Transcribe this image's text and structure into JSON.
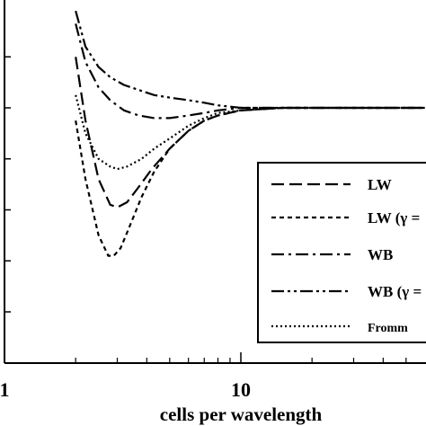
{
  "chart_data": {
    "type": "line",
    "title": "",
    "xlabel": "cells per wavelength",
    "ylabel": "",
    "xscale": "log",
    "xlim": [
      1,
      60
    ],
    "ylim": [
      0,
      1.4
    ],
    "x_ticks": [
      {
        "value": 1,
        "label": "1"
      },
      {
        "value": 10,
        "label": "10"
      }
    ],
    "y_ticks": [
      0.2,
      0.4,
      0.6,
      0.8,
      1.0,
      1.2
    ],
    "grid": false,
    "legend": "right",
    "series": [
      {
        "name": "LW",
        "dash": "long-dash",
        "x": [
          2.0,
          2.2,
          2.5,
          2.8,
          3.0,
          3.3,
          3.7,
          4.2,
          5,
          6,
          7,
          8,
          10,
          15,
          20,
          30,
          60
        ],
        "y": [
          1.2,
          0.95,
          0.72,
          0.62,
          0.61,
          0.63,
          0.69,
          0.76,
          0.84,
          0.91,
          0.95,
          0.97,
          0.99,
          1.0,
          1.0,
          1.0,
          1.0
        ]
      },
      {
        "name": "LW (γ =",
        "dash": "short-dash",
        "x": [
          2.0,
          2.2,
          2.5,
          2.75,
          2.9,
          3.1,
          3.4,
          3.8,
          4.3,
          5,
          6,
          7,
          8,
          10,
          15,
          20,
          30,
          60
        ],
        "y": [
          0.95,
          0.72,
          0.5,
          0.42,
          0.42,
          0.45,
          0.54,
          0.65,
          0.75,
          0.84,
          0.91,
          0.95,
          0.97,
          0.99,
          1.0,
          1.0,
          1.0,
          1.0
        ]
      },
      {
        "name": "WB",
        "dash": "dash-dot",
        "x": [
          2.0,
          2.2,
          2.5,
          2.8,
          3.2,
          3.7,
          4.3,
          5,
          6,
          7,
          8,
          10,
          15,
          20,
          30,
          60
        ],
        "y": [
          1.33,
          1.18,
          1.08,
          1.03,
          0.99,
          0.97,
          0.96,
          0.96,
          0.97,
          0.98,
          0.99,
          1.0,
          1.0,
          1.0,
          1.0,
          1.0
        ]
      },
      {
        "name": "WB (γ =",
        "dash": "dash-dot-dot",
        "x": [
          2.0,
          2.2,
          2.5,
          2.8,
          3.2,
          3.7,
          4.3,
          5,
          6,
          7,
          8,
          10,
          12,
          15,
          20,
          30,
          60
        ],
        "y": [
          1.38,
          1.24,
          1.16,
          1.12,
          1.09,
          1.07,
          1.05,
          1.04,
          1.03,
          1.02,
          1.01,
          1.0,
          1.0,
          1.0,
          1.0,
          1.0,
          1.0
        ]
      },
      {
        "name": "Fromm",
        "dash": "dotted",
        "x": [
          2.0,
          2.2,
          2.5,
          2.8,
          3.0,
          3.3,
          3.8,
          4.3,
          5,
          6,
          7,
          8,
          10,
          15,
          20,
          30,
          60
        ],
        "y": [
          1.05,
          0.9,
          0.8,
          0.77,
          0.76,
          0.77,
          0.8,
          0.84,
          0.88,
          0.93,
          0.96,
          0.98,
          0.99,
          1.0,
          1.0,
          1.0,
          1.0
        ]
      }
    ]
  }
}
